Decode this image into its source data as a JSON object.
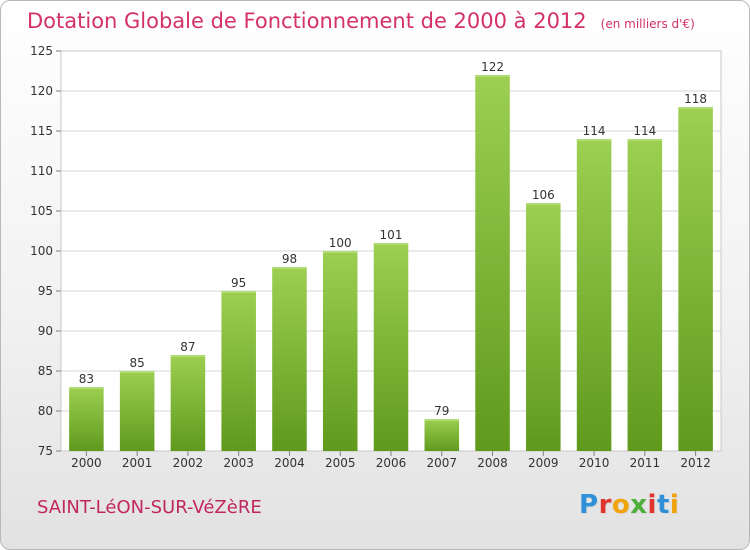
{
  "header": {
    "title": "Dotation Globale de Fonctionnement de 2000 à 2012",
    "unit": "(en milliers d'€)"
  },
  "footer": {
    "place_name": "SAINT-LéON-SUR-VéZèRE",
    "logo_text": "Proxiti",
    "logo_colors": [
      "#2f8fd8",
      "#e0342c",
      "#f0a30a",
      "#4caf3c",
      "#e0342c",
      "#2f8fd8",
      "#f0a30a"
    ]
  },
  "colors": {
    "bar_top": "#9ccf52",
    "bar_bottom": "#5f9a1c",
    "title": "#d4306a",
    "place": "#c0275f",
    "grid": "#d4d4d4",
    "axis": "#808080"
  },
  "chart_data": {
    "type": "bar",
    "title": "Dotation Globale de Fonctionnement de 2000 à 2012",
    "subtitle": "(en milliers d'€)",
    "xlabel": "",
    "ylabel": "",
    "categories": [
      "2000",
      "2001",
      "2002",
      "2003",
      "2004",
      "2005",
      "2006",
      "2007",
      "2008",
      "2009",
      "2010",
      "2011",
      "2012"
    ],
    "values": [
      83,
      85,
      87,
      95,
      98,
      100,
      101,
      79,
      122,
      106,
      114,
      114,
      118
    ],
    "ylim": [
      75,
      125
    ],
    "yticks": [
      75,
      80,
      85,
      90,
      95,
      100,
      105,
      110,
      115,
      120,
      125
    ],
    "grid": true,
    "data_labels": true
  }
}
